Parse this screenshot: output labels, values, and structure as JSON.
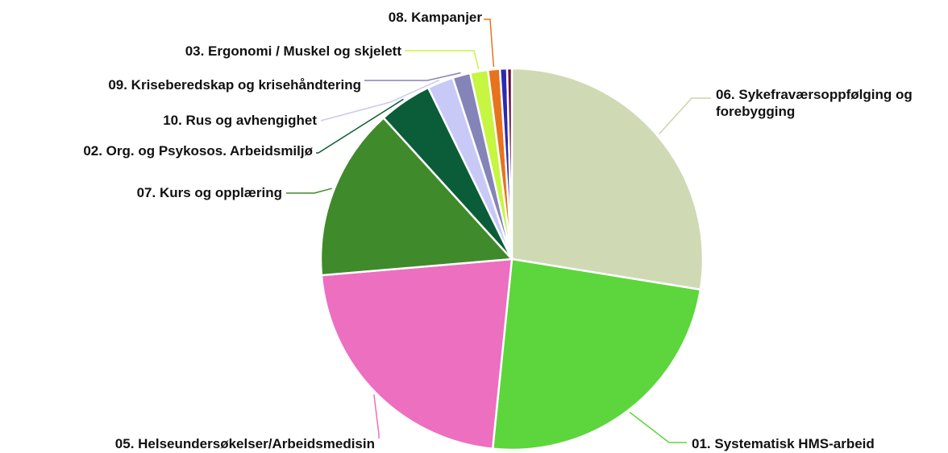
{
  "chart_data": {
    "type": "pie",
    "categories": [
      "06. Sykefraværsoppfølging og forebygging",
      "01. Systematisk HMS-arbeid",
      "05. Helseundersøkelser/Arbeidsmedisin",
      "07. Kurs og opplæring",
      "02. Org. og Psykosos. Arbeidsmiljø",
      "10. Rus og avhengighet",
      "09. Kriseberedskap og krisehåndtering",
      "03. Ergonomi / Muskel og skjelett",
      "08. Kampanjer",
      null,
      null
    ],
    "values": [
      27.5,
      24,
      22,
      14.6,
      4.5,
      2.2,
      1.5,
      1.5,
      1,
      0.6,
      0.4
    ],
    "colors": [
      "#cfdab5",
      "#5cd63c",
      "#ec6fc0",
      "#3f8a2a",
      "#0b5c38",
      "#c9c9f7",
      "#8484b9",
      "#c6f542",
      "#e8731c",
      "#2b2bb0",
      "#6a1040"
    ]
  }
}
